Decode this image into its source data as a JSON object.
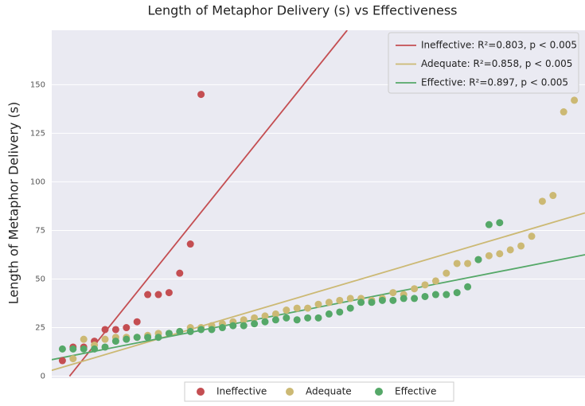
{
  "chart_data": {
    "type": "scatter",
    "title": "Length of Metaphor Delivery (s) vs Effectiveness",
    "y_label": "Length of Metaphor Delivery (s)",
    "xlim": [
      -1,
      49
    ],
    "ylim": [
      -1,
      178
    ],
    "yticks": [
      0,
      25,
      50,
      75,
      100,
      125,
      150
    ],
    "grid": true,
    "legend": "upper right",
    "series": [
      {
        "name": "Ineffective",
        "color": "#c44e52",
        "fit_label": "Ineffective: R²=0.803, p < 0.005",
        "x": [
          0,
          1,
          2,
          3,
          4,
          5,
          6,
          7,
          8,
          9,
          10,
          11,
          12,
          13
        ],
        "values": [
          8,
          15,
          15,
          18,
          24,
          24,
          25,
          28,
          42,
          42,
          43,
          53,
          68,
          145
        ],
        "fit_x": [
          0.67,
          26.7
        ],
        "fit_y": [
          0,
          178
        ]
      },
      {
        "name": "Adequate",
        "color": "#ccb974",
        "fit_label": "Adequate: R²=0.858, p < 0.005",
        "x": [
          1,
          2,
          3,
          4,
          5,
          6,
          7,
          8,
          9,
          10,
          11,
          12,
          13,
          14,
          15,
          16,
          17,
          18,
          19,
          20,
          21,
          22,
          23,
          24,
          25,
          26,
          27,
          28,
          29,
          30,
          31,
          32,
          33,
          34,
          35,
          36,
          37,
          38,
          39,
          40,
          41,
          42,
          43,
          44,
          45,
          46,
          47,
          48
        ],
        "values": [
          9,
          19,
          16,
          19,
          20,
          20,
          20,
          21,
          22,
          22,
          23,
          25,
          25,
          26,
          27,
          28,
          29,
          30,
          31,
          32,
          34,
          35,
          35,
          37,
          38,
          39,
          40,
          40,
          39,
          40,
          43,
          42,
          45,
          47,
          49,
          53,
          58,
          58,
          60,
          62,
          63,
          65,
          67,
          72,
          90,
          93,
          136,
          142
        ],
        "fit_x": [
          -1,
          49
        ],
        "fit_y": [
          3,
          84
        ]
      },
      {
        "name": "Effective",
        "color": "#55a868",
        "fit_label": "Effective: R²=0.897, p < 0.005",
        "x": [
          0,
          1,
          2,
          3,
          4,
          5,
          6,
          7,
          8,
          9,
          10,
          11,
          12,
          13,
          14,
          15,
          16,
          17,
          18,
          19,
          20,
          21,
          22,
          23,
          24,
          25,
          26,
          27,
          28,
          29,
          30,
          31,
          32,
          33,
          34,
          35,
          36,
          37,
          38,
          39,
          40,
          41
        ],
        "values": [
          14,
          14,
          14,
          14,
          15,
          18,
          19,
          20,
          20,
          20,
          22,
          23,
          23,
          24,
          24,
          25,
          26,
          26,
          27,
          28,
          29,
          30,
          29,
          30,
          30,
          32,
          33,
          35,
          38,
          38,
          39,
          39,
          40,
          40,
          41,
          42,
          42,
          43,
          46,
          60,
          78,
          79
        ],
        "fit_x": [
          -1,
          49
        ],
        "fit_y": [
          8.5,
          62.5
        ]
      }
    ]
  }
}
